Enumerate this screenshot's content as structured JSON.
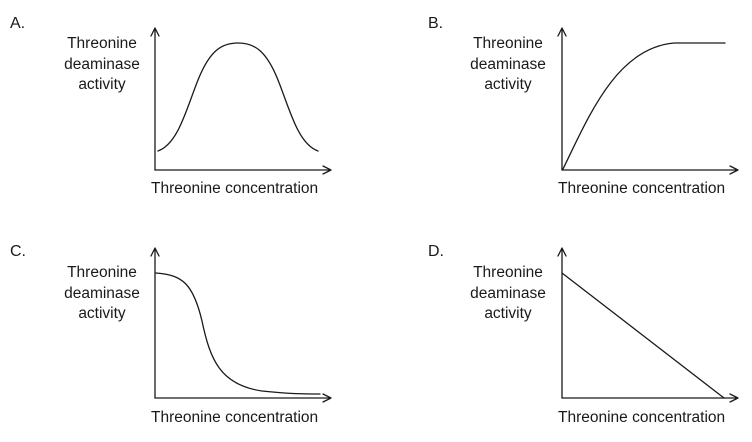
{
  "options": [
    {
      "letter": "A.",
      "curve": "bell-shaped",
      "y_label_lines": [
        "Threonine",
        "deaminase",
        "activity"
      ],
      "x_label": "Threonine concentration"
    },
    {
      "letter": "B.",
      "curve": "saturating increase",
      "y_label_lines": [
        "Threonine",
        "deaminase",
        "activity"
      ],
      "x_label": "Threonine concentration"
    },
    {
      "letter": "C.",
      "curve": "sigmoidal decrease",
      "y_label_lines": [
        "Threonine",
        "deaminase",
        "activity"
      ],
      "x_label": "Threonine concentration"
    },
    {
      "letter": "D.",
      "curve": "linear decrease",
      "y_label_lines": [
        "Threonine",
        "deaminase",
        "activity"
      ],
      "x_label": "Threonine concentration"
    }
  ]
}
